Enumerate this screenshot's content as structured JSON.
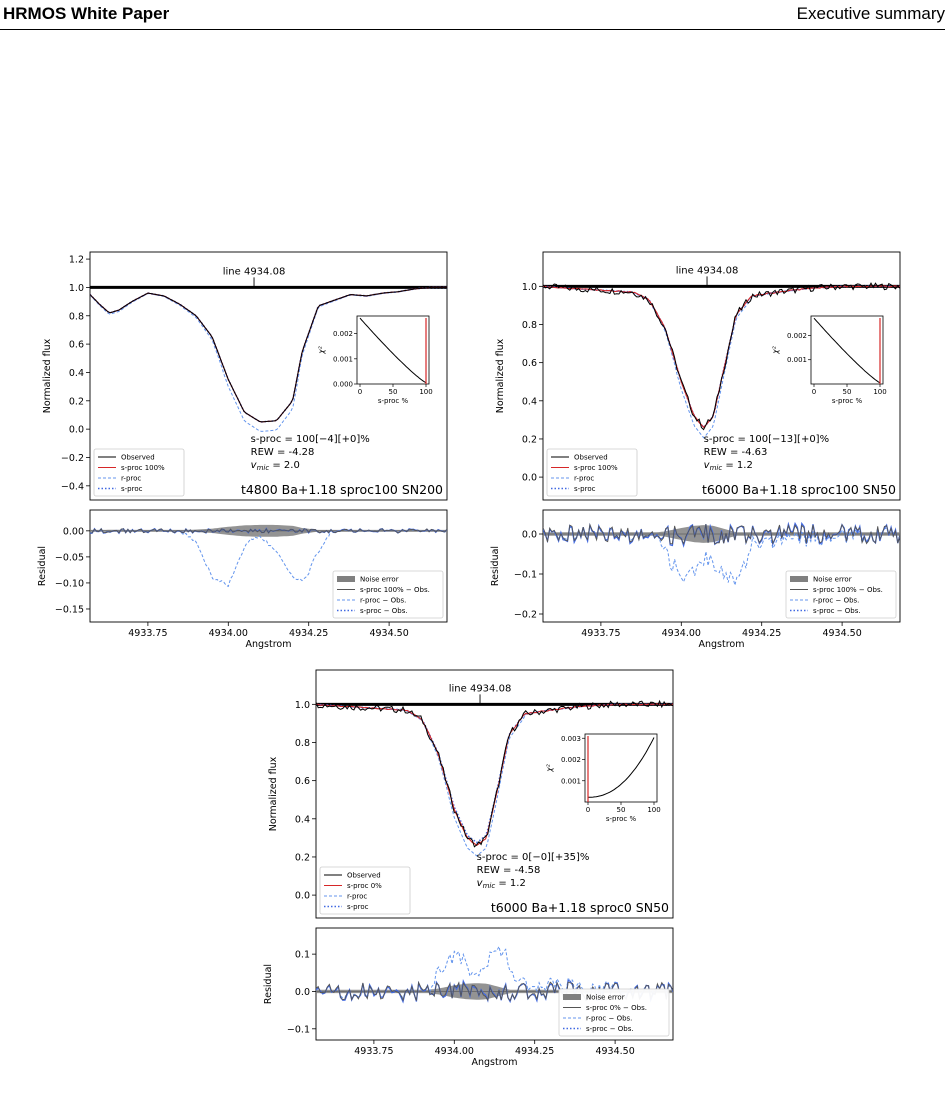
{
  "header": {
    "left": "HRMOS White Paper",
    "right": "Executive summary"
  },
  "common": {
    "line_label": "line 4934.08",
    "ylabel_main": "Normalized flux",
    "ylabel_resid": "Residual",
    "xlabel": "Angstrom",
    "inset_xlabel": "s-proc %",
    "inset_ylabel": "χ²",
    "x_ticks": [
      "4933.75",
      "4934.00",
      "4934.25",
      "4934.50"
    ],
    "inset_x_ticks": [
      "0",
      "50",
      "100"
    ]
  },
  "colors": {
    "observed": "#000000",
    "sproc_fit": "#d62728",
    "rproc": "#6495ed",
    "sproc": "#4169e1",
    "noise": "#808080"
  },
  "chart_data": [
    {
      "type": "line",
      "panel": "t4800 Ba+1.18 sproc100 SN200",
      "title_label": "t4800 Ba+1.18 sproc100 SN200",
      "annot": {
        "sproc": "s-proc = 100[−4][+0]%",
        "rew": "REW = -4.28",
        "vmic": "= 2.0"
      },
      "legend_main": [
        "Observed",
        "s-proc 100%",
        "r-proc",
        "s-proc"
      ],
      "legend_resid": [
        "Noise error",
        "s-proc 100% −  Obs.",
        "r-proc − Obs.",
        "s-proc − Obs."
      ],
      "xlim": [
        4933.57,
        4934.68
      ],
      "ylim": [
        -0.5,
        1.25
      ],
      "y_ticks": [
        "1.2",
        "1.0",
        "0.8",
        "0.6",
        "0.4",
        "0.2",
        "0.0",
        "−0.2",
        "−0.4"
      ],
      "y_tick_values": [
        1.2,
        1.0,
        0.8,
        0.6,
        0.4,
        0.2,
        0.0,
        -0.2,
        -0.4
      ],
      "resid_ylim": [
        -0.175,
        0.04
      ],
      "resid_ticks": [
        "0.00",
        "−0.05",
        "−0.10",
        "−0.15"
      ],
      "resid_tick_values": [
        0.0,
        -0.05,
        -0.1,
        -0.15
      ],
      "inset": {
        "ylim": [
          0.0,
          0.0027
        ],
        "y_ticks": [
          "0.002",
          "0.001",
          "0.000"
        ],
        "y_tick_values": [
          0.002,
          0.001,
          0.0
        ],
        "best": 100,
        "shape": "decreasing"
      },
      "observed": {
        "x": [
          4933.57,
          4933.6,
          4933.63,
          4933.66,
          4933.7,
          4933.75,
          4933.8,
          4933.85,
          4933.9,
          4933.95,
          4934.0,
          4934.05,
          4934.1,
          4934.15,
          4934.2,
          4934.23,
          4934.28,
          4934.33,
          4934.38,
          4934.43,
          4934.48,
          4934.53,
          4934.58,
          4934.63,
          4934.68
        ],
        "y": [
          0.95,
          0.88,
          0.82,
          0.84,
          0.9,
          0.96,
          0.94,
          0.88,
          0.8,
          0.65,
          0.35,
          0.12,
          0.05,
          0.06,
          0.2,
          0.55,
          0.87,
          0.91,
          0.95,
          0.94,
          0.96,
          0.97,
          0.99,
          1.0,
          1.0
        ]
      },
      "rproc_dip_shift": 0.012,
      "resid_rproc": {
        "x": [
          4933.57,
          4933.85,
          4933.9,
          4933.95,
          4934.0,
          4934.03,
          4934.06,
          4934.1,
          4934.15,
          4934.2,
          4934.24,
          4934.27,
          4934.32,
          4934.68
        ],
        "y": [
          0.0,
          0.0,
          -0.02,
          -0.09,
          -0.105,
          -0.06,
          -0.02,
          -0.01,
          -0.04,
          -0.09,
          -0.095,
          -0.05,
          0.0,
          0.0
        ]
      }
    },
    {
      "type": "line",
      "panel": "t6000 Ba+1.18 sproc100 SN50",
      "title_label": "t6000 Ba+1.18 sproc100 SN50",
      "annot": {
        "sproc": "s-proc = 100[−13][+0]%",
        "rew": "REW = -4.63",
        "vmic": "= 1.2"
      },
      "legend_main": [
        "Observed",
        "s-proc 100%",
        "r-proc",
        "s-proc"
      ],
      "legend_resid": [
        "Noise error",
        "s-proc 100% −  Obs.",
        "r-proc − Obs.",
        "s-proc − Obs."
      ],
      "xlim": [
        4933.57,
        4934.68
      ],
      "ylim": [
        -0.12,
        1.18
      ],
      "y_ticks": [
        "1.0",
        "0.8",
        "0.6",
        "0.4",
        "0.2",
        "0.0"
      ],
      "y_tick_values": [
        1.0,
        0.8,
        0.6,
        0.4,
        0.2,
        0.0
      ],
      "resid_ylim": [
        -0.22,
        0.06
      ],
      "resid_ticks": [
        "0.0",
        "−0.1",
        "−0.2"
      ],
      "resid_tick_values": [
        0.0,
        -0.1,
        -0.2
      ],
      "inset": {
        "ylim": [
          0.0,
          0.0028
        ],
        "y_ticks": [
          "0.002",
          "0.001"
        ],
        "y_tick_values": [
          0.002,
          0.001
        ],
        "best": 100,
        "shape": "decreasing"
      },
      "observed": {
        "x": [
          4933.57,
          4933.65,
          4933.75,
          4933.85,
          4933.9,
          4933.95,
          4934.0,
          4934.04,
          4934.07,
          4934.1,
          4934.13,
          4934.17,
          4934.22,
          4934.3,
          4934.4,
          4934.5,
          4934.68
        ],
        "y": [
          1.0,
          0.99,
          0.98,
          0.97,
          0.93,
          0.78,
          0.5,
          0.32,
          0.26,
          0.32,
          0.55,
          0.85,
          0.95,
          0.97,
          0.99,
          1.0,
          1.0
        ]
      },
      "rproc_dip_shift": 0.008,
      "resid_rproc": {
        "x": [
          4933.57,
          4933.93,
          4933.96,
          4934.0,
          4934.04,
          4934.08,
          4934.12,
          4934.15,
          4934.18,
          4934.22,
          4934.68
        ],
        "y": [
          0.0,
          0.0,
          -0.06,
          -0.1,
          -0.1,
          -0.06,
          -0.08,
          -0.11,
          -0.12,
          -0.02,
          0.0
        ]
      }
    },
    {
      "type": "line",
      "panel": "t6000 Ba+1.18 sproc0 SN50",
      "title_label": "t6000 Ba+1.18 sproc0 SN50",
      "annot": {
        "sproc": "s-proc = 0[−0][+35]%",
        "rew": "REW = -4.58",
        "vmic": "= 1.2"
      },
      "legend_main": [
        "Observed",
        "s-proc 0%",
        "r-proc",
        "s-proc"
      ],
      "legend_resid": [
        "Noise error",
        "s-proc 0% −  Obs.",
        "r-proc − Obs.",
        "s-proc − Obs."
      ],
      "xlim": [
        4933.57,
        4934.68
      ],
      "ylim": [
        -0.12,
        1.18
      ],
      "y_ticks": [
        "1.0",
        "0.8",
        "0.6",
        "0.4",
        "0.2",
        "0.0"
      ],
      "y_tick_values": [
        1.0,
        0.8,
        0.6,
        0.4,
        0.2,
        0.0
      ],
      "resid_ylim": [
        -0.13,
        0.17
      ],
      "resid_ticks": [
        "0.1",
        "0.0",
        "−0.1"
      ],
      "resid_tick_values": [
        0.1,
        0.0,
        -0.1
      ],
      "inset": {
        "ylim": [
          0.0,
          0.0032
        ],
        "y_ticks": [
          "0.003",
          "0.002",
          "0.001"
        ],
        "y_tick_values": [
          0.003,
          0.002,
          0.001
        ],
        "best": 0,
        "shape": "increasing"
      },
      "observed": {
        "x": [
          4933.57,
          4933.65,
          4933.75,
          4933.85,
          4933.9,
          4933.95,
          4934.0,
          4934.04,
          4934.07,
          4934.1,
          4934.13,
          4934.17,
          4934.22,
          4934.3,
          4934.4,
          4934.5,
          4934.68
        ],
        "y": [
          1.0,
          0.99,
          0.98,
          0.97,
          0.92,
          0.74,
          0.45,
          0.3,
          0.26,
          0.3,
          0.52,
          0.84,
          0.95,
          0.97,
          0.99,
          1.0,
          1.0
        ]
      },
      "rproc_dip_shift": 0.0,
      "resid_rproc": {
        "x": [
          4933.57,
          4933.92,
          4933.95,
          4934.0,
          4934.03,
          4934.06,
          4934.1,
          4934.13,
          4934.16,
          4934.2,
          4934.68
        ],
        "y": [
          0.0,
          0.0,
          0.05,
          0.095,
          0.08,
          0.03,
          0.08,
          0.125,
          0.1,
          0.02,
          0.0
        ]
      }
    }
  ]
}
